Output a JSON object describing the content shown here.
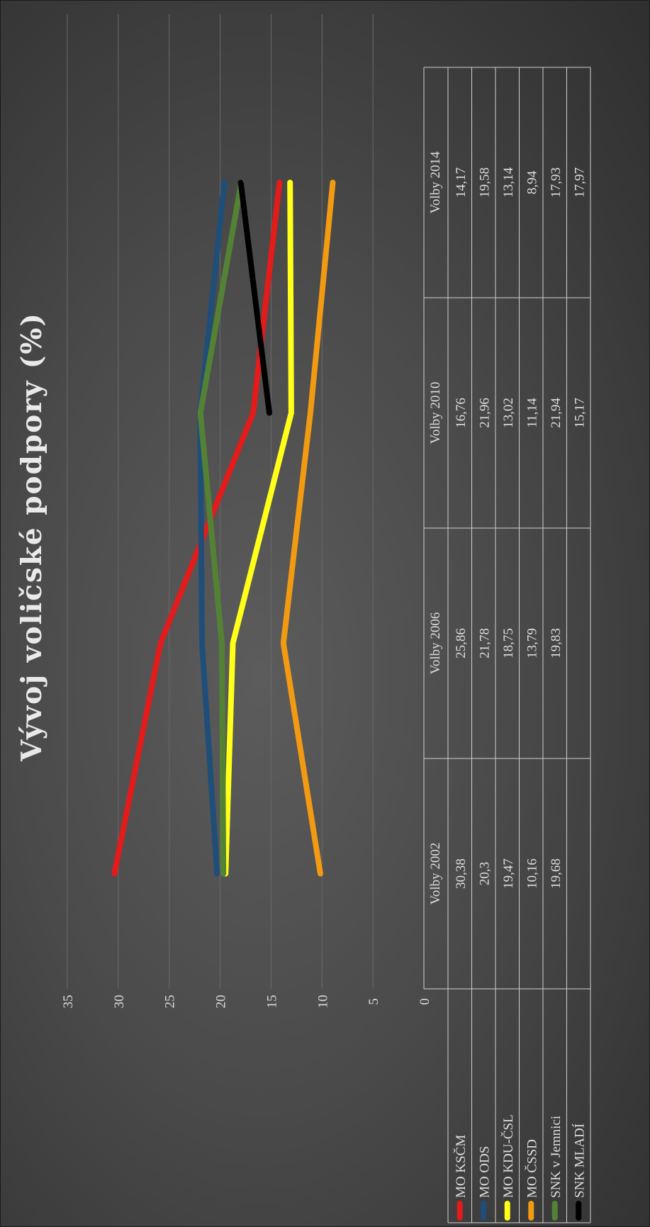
{
  "chart_data": {
    "type": "line",
    "title": "Vývoj voličské podpory (%)",
    "categories": [
      "Volby 2002",
      "Volby 2006",
      "Volby 2010",
      "Volby 2014"
    ],
    "ylim": [
      0,
      35
    ],
    "yticks": [
      0,
      5,
      10,
      15,
      20,
      25,
      30,
      35
    ],
    "grid": true,
    "legend": "data table",
    "orientation": "rotated 90° clockwise",
    "series": [
      {
        "name": "MO KSČM",
        "color": "#e31b1b",
        "values": [
          30.38,
          25.86,
          16.76,
          14.17
        ],
        "labels": [
          "30,38",
          "25,86",
          "16,76",
          "14,17"
        ]
      },
      {
        "name": "MO ODS",
        "color": "#1f4e79",
        "values": [
          20.3,
          21.78,
          21.96,
          19.58
        ],
        "labels": [
          "20,3",
          "21,78",
          "21,96",
          "19,58"
        ]
      },
      {
        "name": "MO KDU-ČSL",
        "color": "#ffff1a",
        "values": [
          19.47,
          18.75,
          13.02,
          13.14
        ],
        "labels": [
          "19,47",
          "18,75",
          "13,02",
          "13,14"
        ]
      },
      {
        "name": "MO ČSSD",
        "color": "#f29a11",
        "values": [
          10.16,
          13.79,
          11.14,
          8.94
        ],
        "labels": [
          "10,16",
          "13,79",
          "11,14",
          "8,94"
        ]
      },
      {
        "name": "SNK v Jemnici",
        "color": "#548235",
        "values": [
          19.68,
          19.83,
          21.94,
          17.93
        ],
        "labels": [
          "19,68",
          "19,83",
          "21,94",
          "17,93"
        ]
      },
      {
        "name": "SNK MLADÍ",
        "color": "#000000",
        "values": [
          null,
          null,
          15.17,
          17.97
        ],
        "labels": [
          "",
          "",
          "15,17",
          "17,97"
        ]
      }
    ]
  }
}
